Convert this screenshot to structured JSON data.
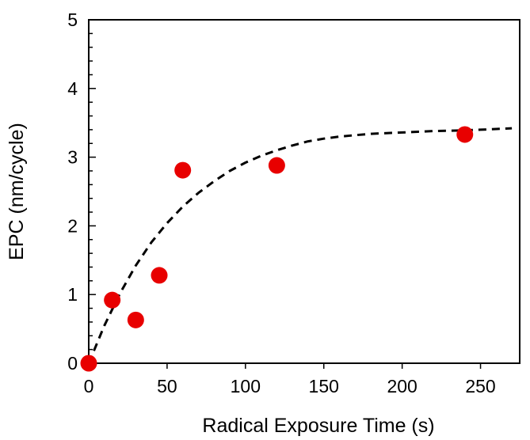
{
  "chart_data": {
    "type": "scatter",
    "title": "",
    "xlabel": "Radical Exposure Time (s)",
    "ylabel": "EPC (nm/cycle)",
    "xlim": [
      0,
      275
    ],
    "ylim": [
      0,
      5
    ],
    "x_ticks": [
      0,
      50,
      100,
      150,
      200,
      250
    ],
    "y_ticks": [
      0,
      1,
      2,
      3,
      4,
      5
    ],
    "x_tick_labels": [
      "0",
      "50",
      "100",
      "150",
      "200",
      "250"
    ],
    "y_tick_labels": [
      "0",
      "1",
      "2",
      "3",
      "4",
      "5"
    ],
    "y_minor_step": 0.2,
    "grid": false,
    "legend": "none",
    "series": [
      {
        "kind": "points",
        "color": "#e80000",
        "x": [
          0,
          15,
          30,
          45,
          60,
          120,
          240
        ],
        "y": [
          0,
          0.92,
          0.63,
          1.28,
          2.81,
          2.88,
          3.33
        ]
      },
      {
        "kind": "fit-curve",
        "style": "dashed",
        "color": "#000000",
        "x": [
          0,
          10,
          20,
          30,
          40,
          50,
          60,
          70,
          80,
          90,
          100,
          110,
          120,
          130,
          140,
          150,
          160,
          170,
          180,
          190,
          200,
          210,
          220,
          230,
          240,
          250,
          260,
          270
        ],
        "y": [
          0,
          0.55,
          1.02,
          1.42,
          1.76,
          2.04,
          2.28,
          2.48,
          2.65,
          2.8,
          2.92,
          3.02,
          3.1,
          3.17,
          3.23,
          3.27,
          3.3,
          3.32,
          3.34,
          3.35,
          3.36,
          3.37,
          3.38,
          3.385,
          3.39,
          3.4,
          3.41,
          3.42
        ]
      }
    ]
  }
}
